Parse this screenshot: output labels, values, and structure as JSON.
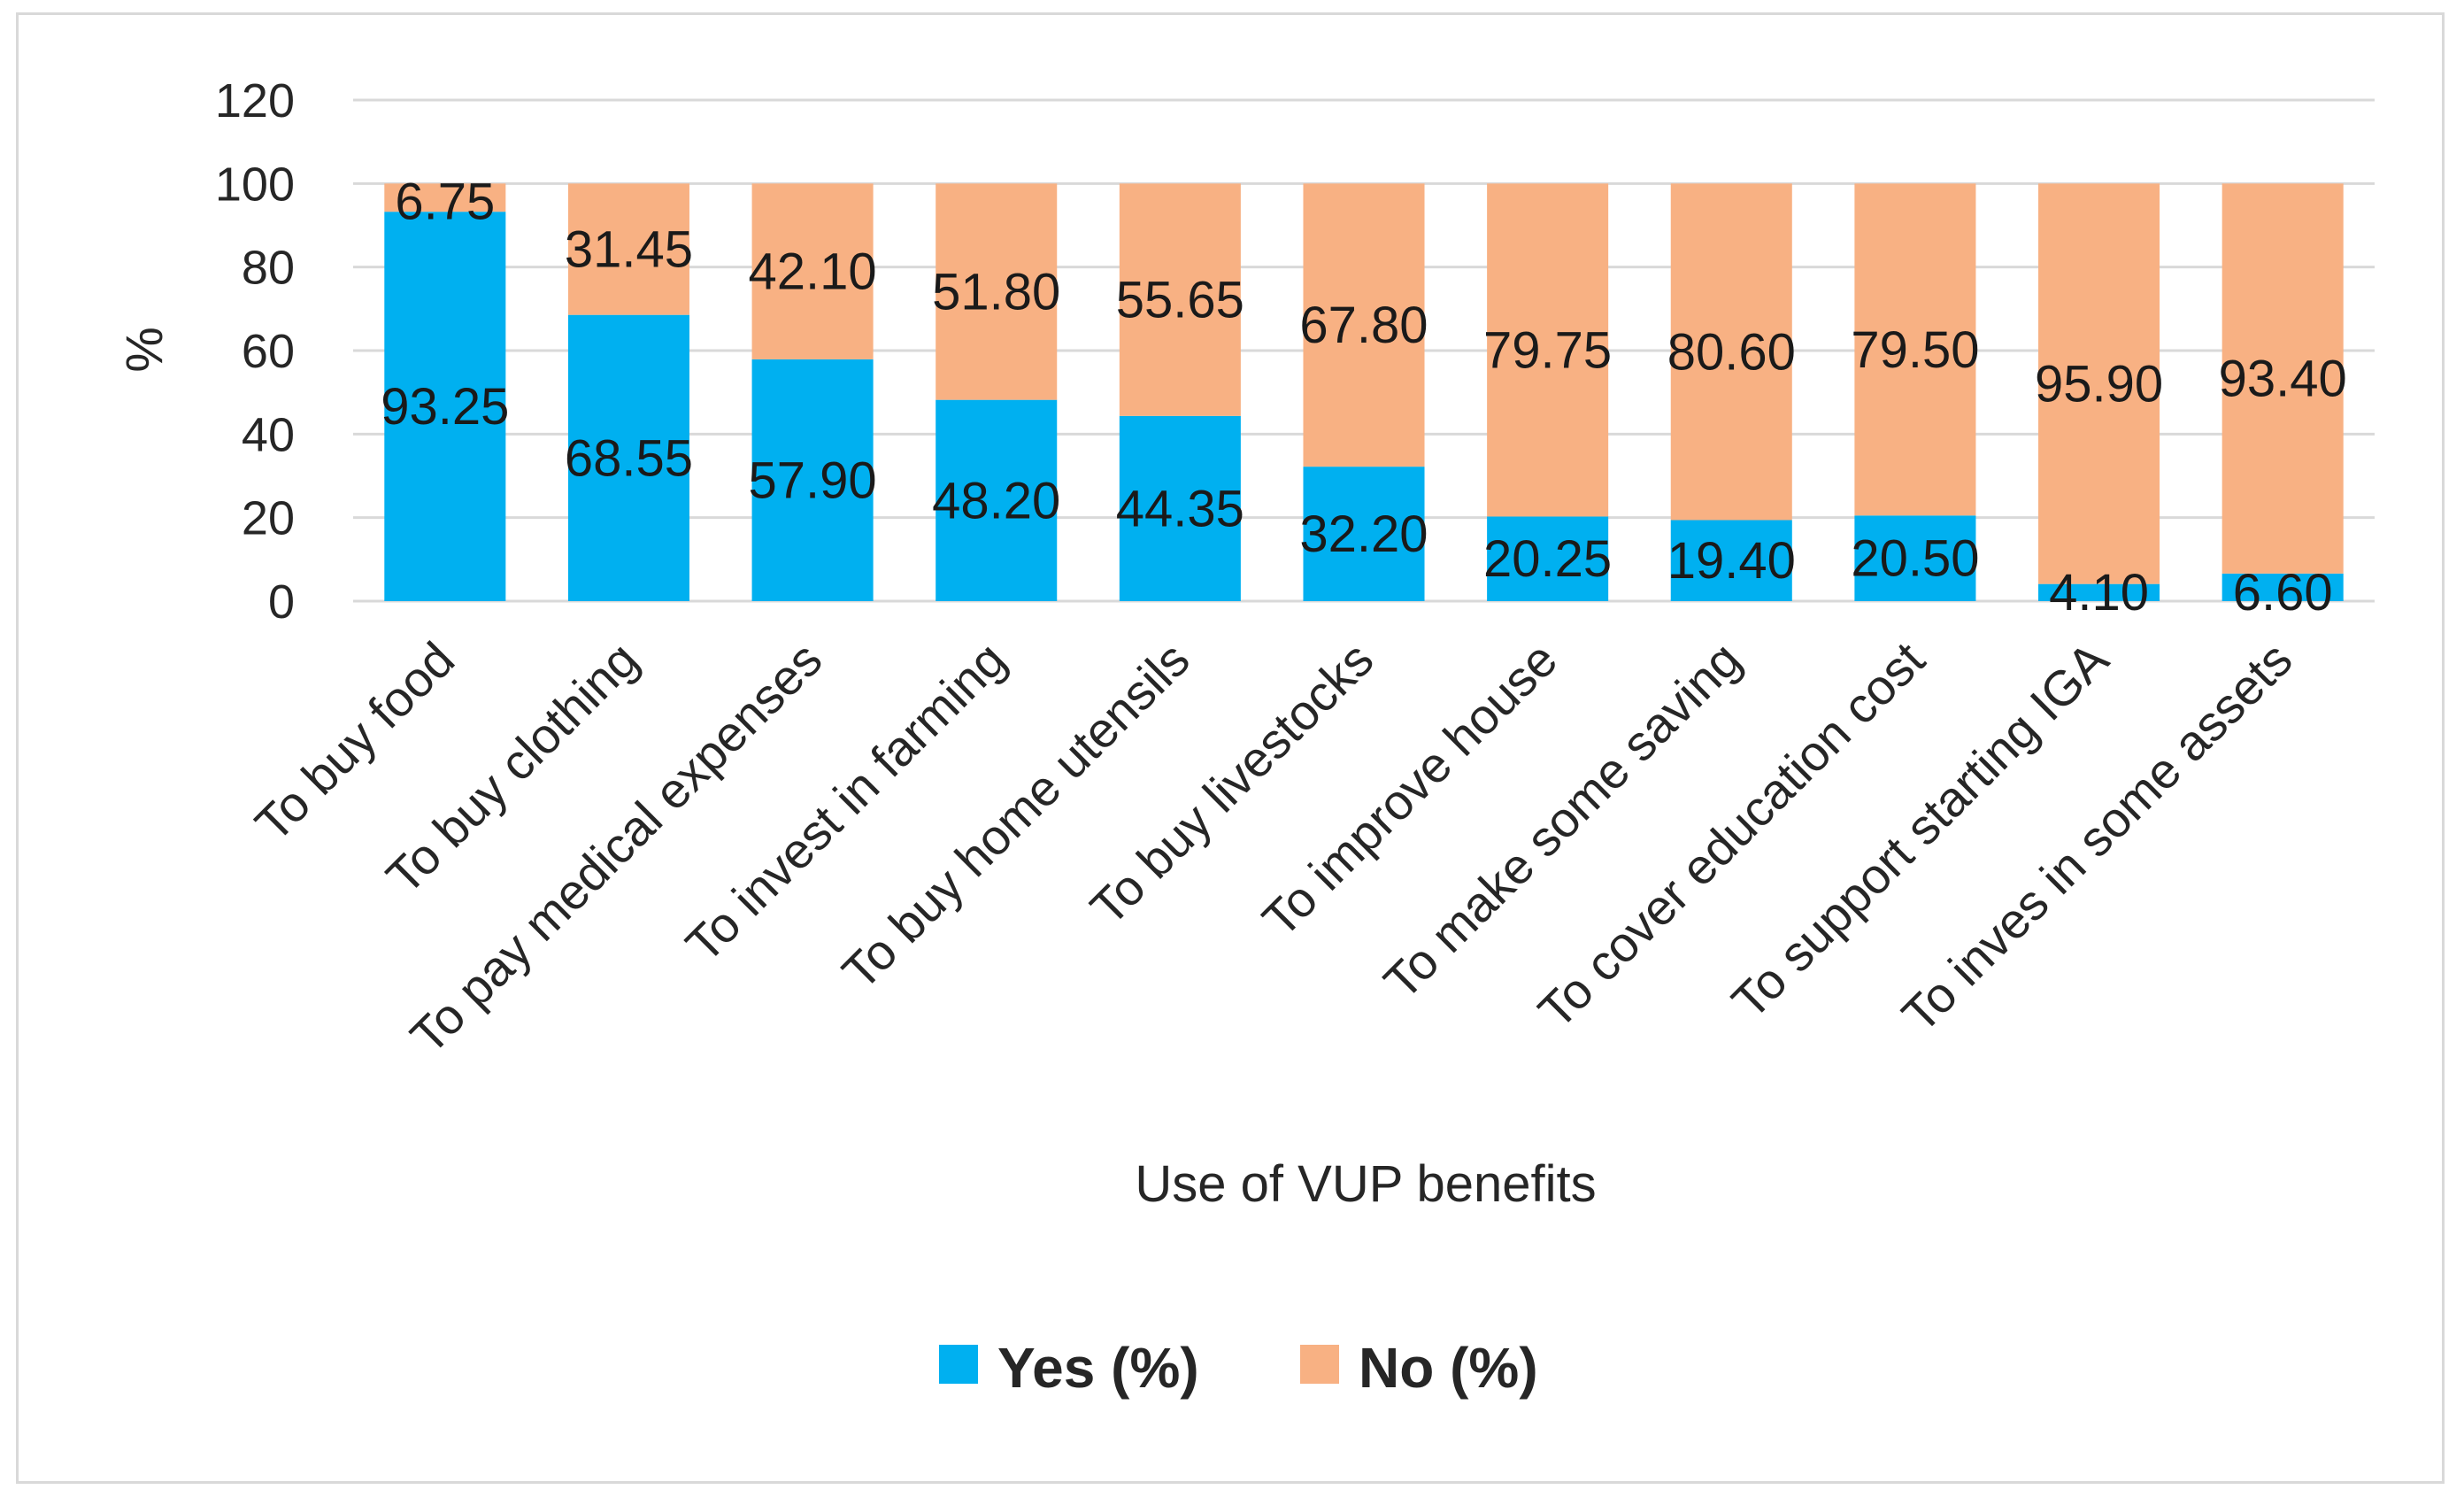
{
  "chart_data": {
    "type": "bar",
    "stacked": true,
    "title": "",
    "xlabel": "Use of VUP benefits",
    "ylabel": "%",
    "ylim": [
      0,
      120
    ],
    "yticks": [
      0,
      20,
      40,
      60,
      80,
      100,
      120
    ],
    "grid": true,
    "legend_position": "bottom",
    "categories": [
      "To buy food",
      "To buy clothing",
      "To pay medical expenses",
      "To invest in farming",
      "To buy home utensils",
      "To buy livestocks",
      "To improve house",
      "To make some saving",
      "To cover education cost",
      "To support starting IGA",
      "To inves in some assets"
    ],
    "series": [
      {
        "name": "Yes (%)",
        "color": "#00b0f0",
        "values": [
          93.25,
          68.55,
          57.9,
          48.2,
          44.35,
          32.2,
          20.25,
          19.4,
          20.5,
          4.1,
          6.6
        ],
        "labels": [
          "93.25",
          "68.55",
          "57.90",
          "48.20",
          "44.35",
          "32.20",
          "20.25",
          "19.40",
          "20.50",
          "4.10",
          "6.60"
        ]
      },
      {
        "name": "No (%)",
        "color": "#f8b183",
        "values": [
          6.75,
          31.45,
          42.1,
          51.8,
          55.65,
          67.8,
          79.75,
          80.6,
          79.5,
          95.9,
          93.4
        ],
        "labels": [
          "6.75",
          "31.45",
          "42.10",
          "51.80",
          "55.65",
          "67.80",
          "79.75",
          "80.60",
          "79.50",
          "95.90",
          "93.40"
        ]
      }
    ]
  }
}
